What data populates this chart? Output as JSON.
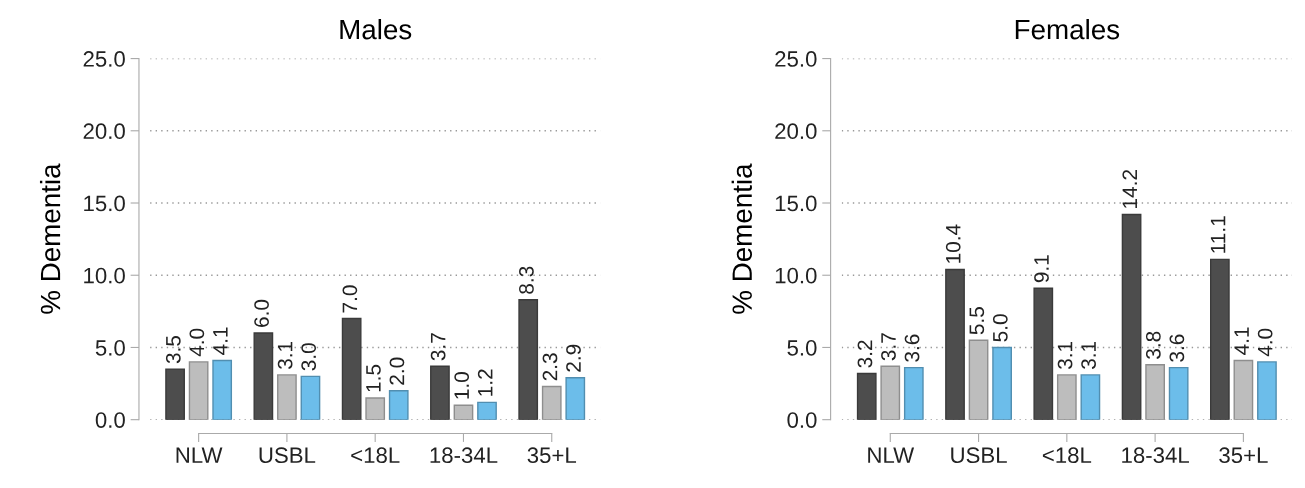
{
  "chart_data": [
    {
      "type": "bar",
      "title": "Males",
      "ylabel": "% Dementia",
      "categories": [
        "NLW",
        "USBL",
        "<18L",
        "18-34L",
        "35+L"
      ],
      "series": [
        {
          "color": "#4d4d4d",
          "values": [
            3.5,
            6.0,
            7.0,
            3.7,
            8.3
          ],
          "value_labels": [
            "3.5",
            "6.0",
            "7.0",
            "3.7",
            "8.3"
          ]
        },
        {
          "color": "#bdbdbd",
          "values": [
            4.0,
            3.1,
            1.5,
            1.0,
            2.3
          ],
          "value_labels": [
            "4.0",
            "3.1",
            "1.5",
            "1.0",
            "2.3"
          ]
        },
        {
          "color": "#6cbdea",
          "values": [
            4.1,
            3.0,
            2.0,
            1.2,
            2.9
          ],
          "value_labels": [
            "4.1",
            "3.0",
            "2.0",
            "1.2",
            "2.9"
          ]
        }
      ],
      "ylim": [
        0,
        25
      ],
      "yticks": [
        {
          "value": 0,
          "label": "0.0"
        },
        {
          "value": 5,
          "label": "5.0"
        },
        {
          "value": 10,
          "label": "10.0"
        },
        {
          "value": 15,
          "label": "15.0"
        },
        {
          "value": 20,
          "label": "20.0"
        },
        {
          "value": 25,
          "label": "25.0"
        }
      ],
      "grid": "y"
    },
    {
      "type": "bar",
      "title": "Females",
      "ylabel": "% Dementia",
      "categories": [
        "NLW",
        "USBL",
        "<18L",
        "18-34L",
        "35+L"
      ],
      "series": [
        {
          "color": "#4d4d4d",
          "values": [
            3.2,
            10.4,
            9.1,
            14.2,
            11.1
          ],
          "value_labels": [
            "3.2",
            "10.4",
            "9.1",
            "14.2",
            "11.1"
          ]
        },
        {
          "color": "#bdbdbd",
          "values": [
            3.7,
            5.5,
            3.1,
            3.8,
            4.1
          ],
          "value_labels": [
            "3.7",
            "5.5",
            "3.1",
            "3.8",
            "4.1"
          ]
        },
        {
          "color": "#6cbdea",
          "values": [
            3.6,
            5.0,
            3.1,
            3.6,
            4.0
          ],
          "value_labels": [
            "3.6",
            "5.0",
            "3.1",
            "3.6",
            "4.0"
          ]
        }
      ],
      "ylim": [
        0,
        25
      ],
      "yticks": [
        {
          "value": 0,
          "label": "0.0"
        },
        {
          "value": 5,
          "label": "5.0"
        },
        {
          "value": 10,
          "label": "10.0"
        },
        {
          "value": 15,
          "label": "15.0"
        },
        {
          "value": 20,
          "label": "20.0"
        },
        {
          "value": 25,
          "label": "25.0"
        }
      ],
      "grid": "y"
    }
  ]
}
